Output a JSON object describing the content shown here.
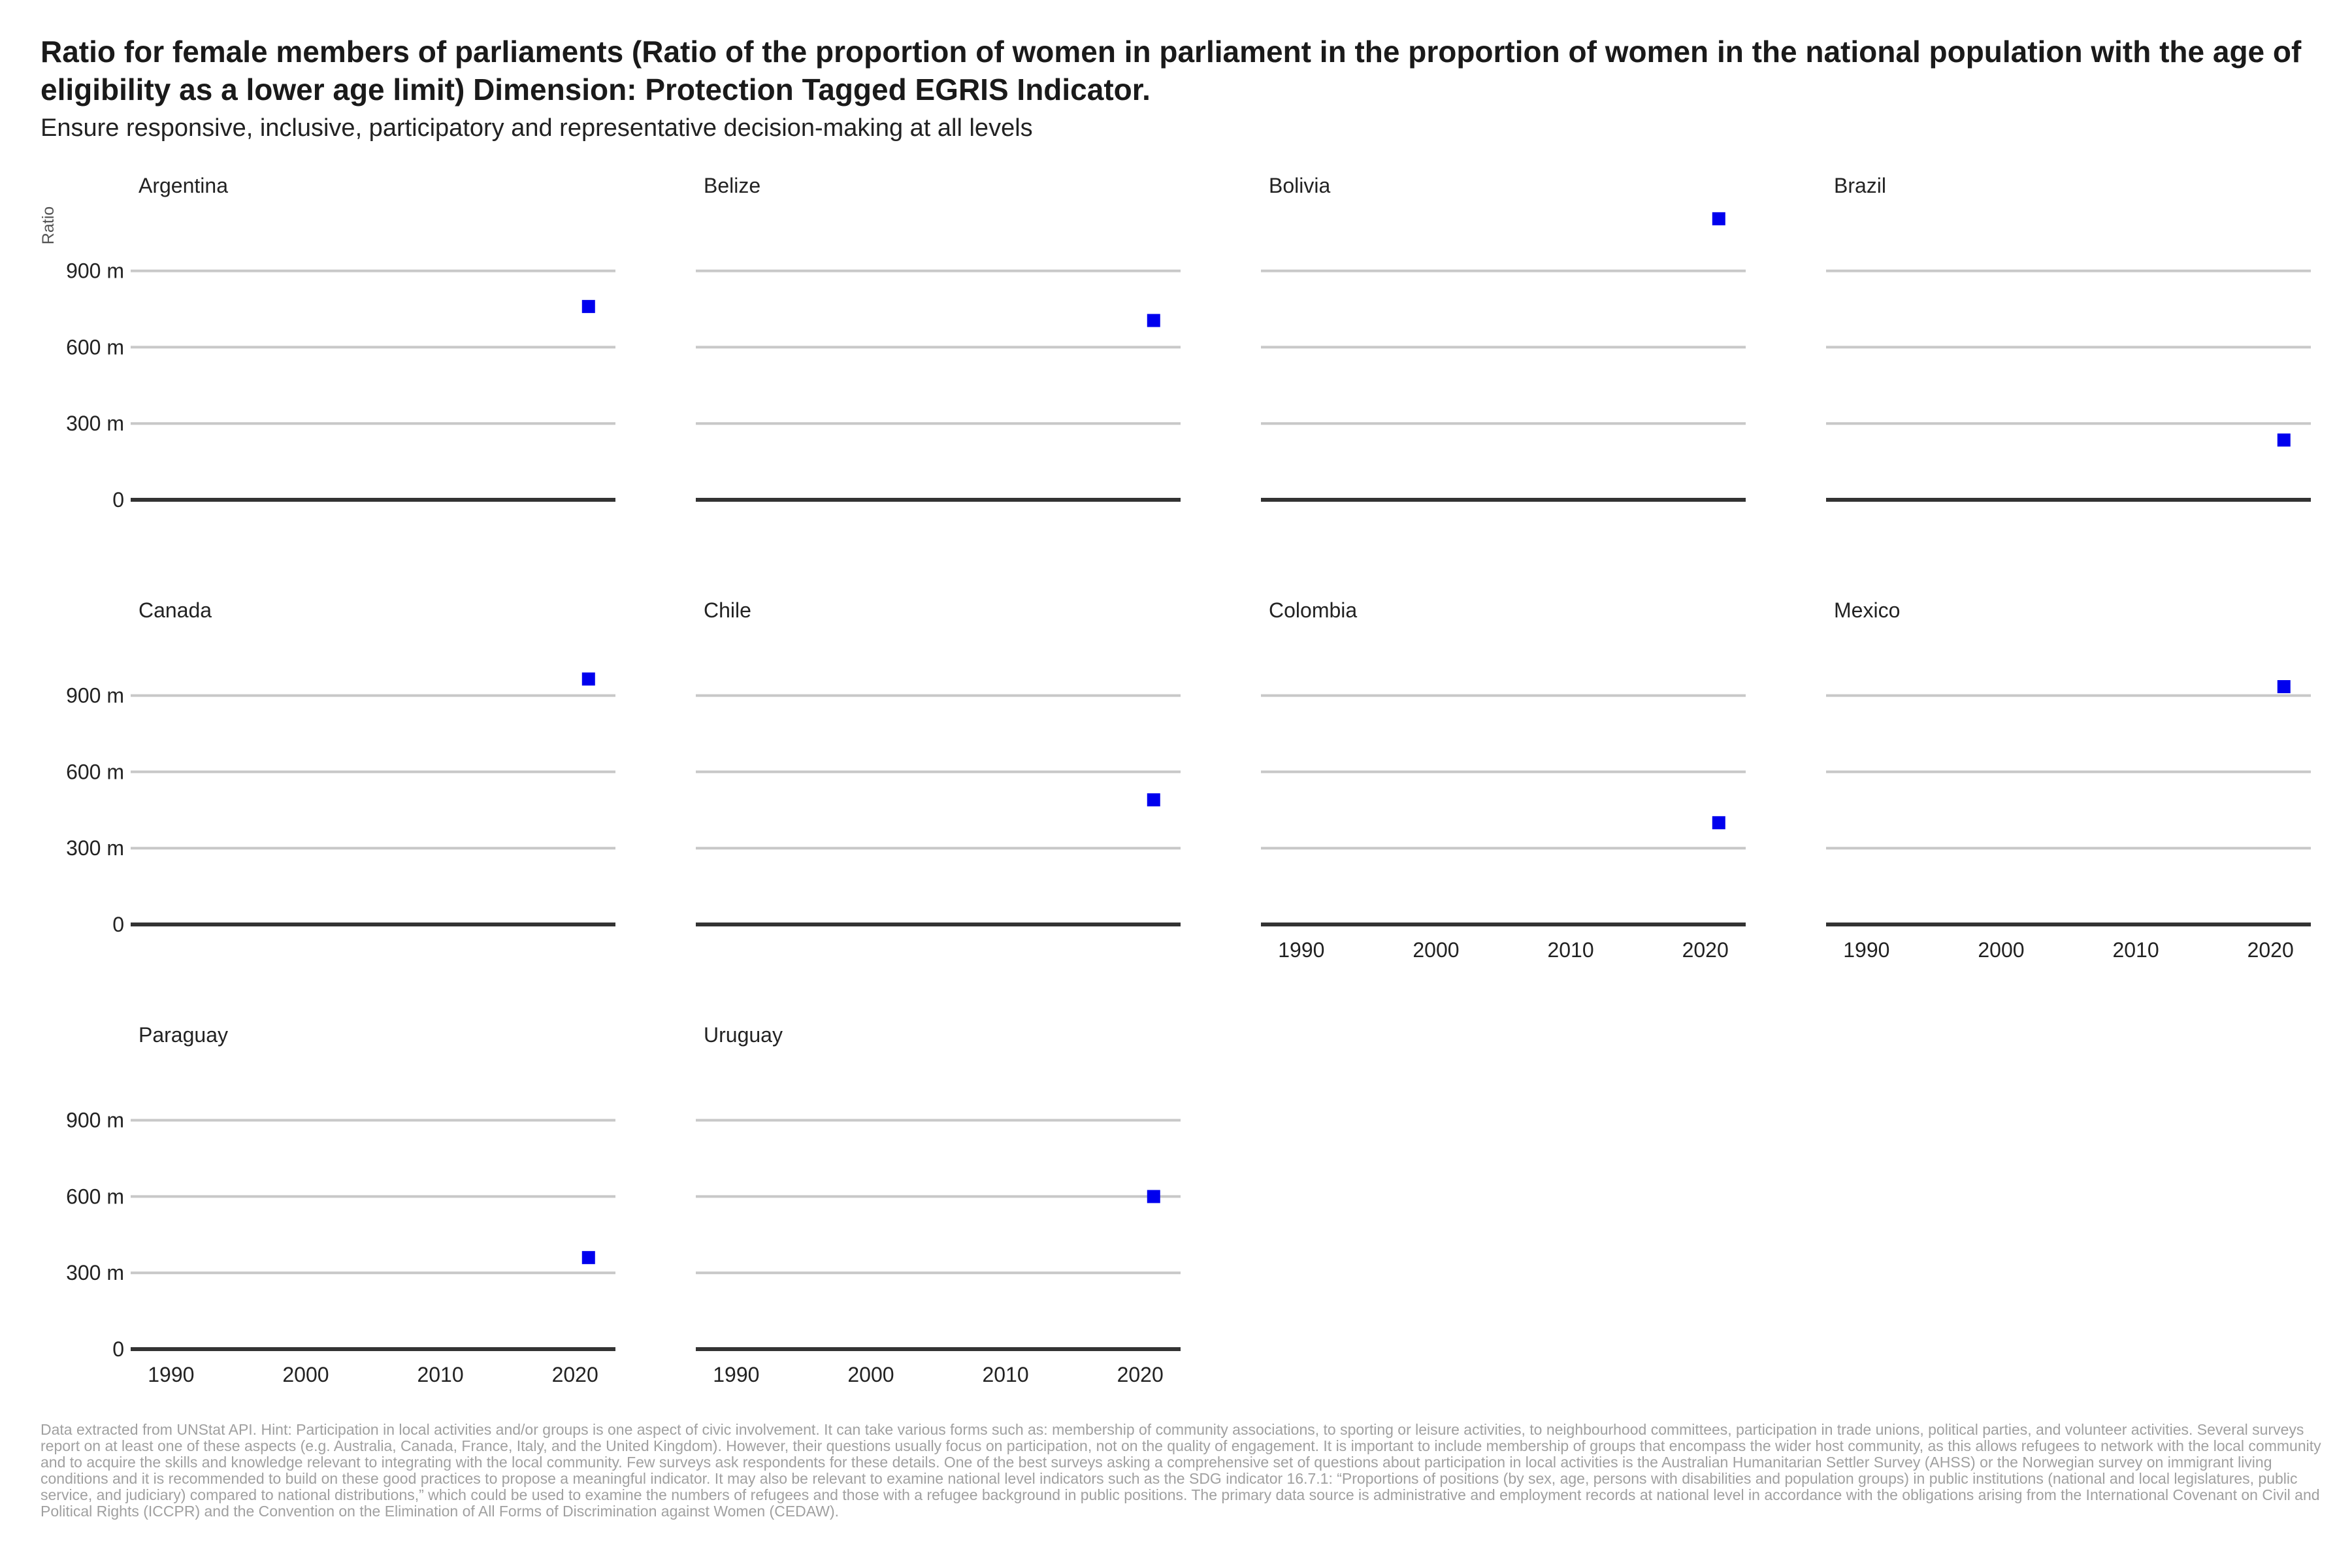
{
  "chart_data": {
    "type": "scatter",
    "title": "Ratio for female members of parliaments (Ratio of the proportion of women in parliament in the proportion of women in the national population with the age of eligibility as a lower age limit) Dimension: Protection Tagged EGRIS Indicator.",
    "subtitle": "Ensure responsive, inclusive, participatory and representative decision-making at all levels",
    "ylabel": "Ratio",
    "xlabel": "",
    "xlim": [
      1987,
      2023
    ],
    "ylim": [
      0,
      1100
    ],
    "x_ticks": [
      1990,
      2000,
      2010,
      2020
    ],
    "x_tick_labels": [
      "1990",
      "2000",
      "2010",
      "2020"
    ],
    "y_ticks": [
      0,
      300,
      600,
      900
    ],
    "y_tick_labels": [
      "0",
      "300 m",
      "600 m",
      "900 m"
    ],
    "grid": true,
    "marker_color": "#0000ee",
    "facets": [
      {
        "name": "Argentina",
        "x": [
          2021
        ],
        "y": [
          760
        ]
      },
      {
        "name": "Belize",
        "x": [
          2021
        ],
        "y": [
          705
        ]
      },
      {
        "name": "Bolivia",
        "x": [
          2021
        ],
        "y": [
          1105
        ]
      },
      {
        "name": "Brazil",
        "x": [
          2021
        ],
        "y": [
          235
        ]
      },
      {
        "name": "Canada",
        "x": [
          2021
        ],
        "y": [
          965
        ]
      },
      {
        "name": "Chile",
        "x": [
          2021
        ],
        "y": [
          490
        ]
      },
      {
        "name": "Colombia",
        "x": [
          2021
        ],
        "y": [
          400
        ]
      },
      {
        "name": "Mexico",
        "x": [
          2021
        ],
        "y": [
          935
        ]
      },
      {
        "name": "Paraguay",
        "x": [
          2021
        ],
        "y": [
          360
        ]
      },
      {
        "name": "Uruguay",
        "x": [
          2021
        ],
        "y": [
          600
        ]
      }
    ],
    "caption": "Data extracted from UNStat API. Hint: Participation in local activities and/or groups is one aspect of civic involvement. It can take various forms such as: membership of community associations, to sporting or leisure activities, to neighbourhood committees, participation in trade unions, political parties, and volunteer activities. Several surveys report on at least one of these aspects (e.g. Australia, Canada, France, Italy, and the United Kingdom). However, their questions usually focus on participation, not on the quality of engagement. It is important to include membership of groups that encompass the wider host community, as this allows refugees to network with the local community and to acquire the skills and knowledge relevant to integrating with the local community. Few surveys ask respondents for these details. One of the best surveys asking a comprehensive set of questions about participation in local activities is the Australian Humanitarian Settler Survey (AHSS) or the Norwegian survey on immigrant living conditions and it is recommended to build on these good practices to propose a meaningful indicator. It may also be relevant to examine national level indicators such as the SDG indicator 16.7.1: “Proportions of positions (by sex, age, persons with disabilities and population groups) in public institutions (national and local legislatures, public service, and judiciary) compared to national distributions,” which could be used to examine the numbers of refugees and those with a refugee background in public positions. The primary data source is administrative and employment records at national level in accordance with the obligations arising from the International Covenant on Civil and Political Rights (ICCPR) and the Convention on the Elimination of All Forms of Discrimination against Women (CEDAW)."
  }
}
